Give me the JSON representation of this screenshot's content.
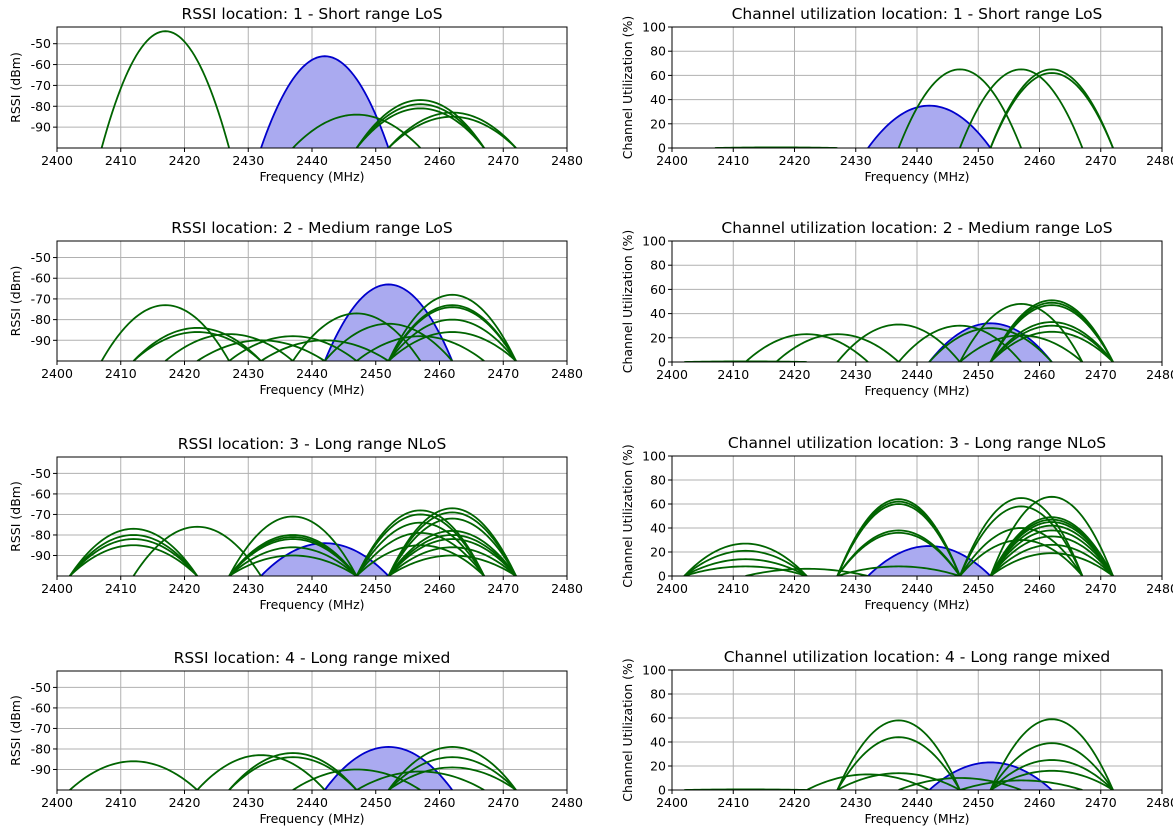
{
  "colors": {
    "neighbor": "#006400",
    "own": "#0000cc",
    "own_fill": "#aaaaf0"
  },
  "chart_data": [
    {
      "type": "area",
      "title": "RSSI location: 1 - Short range LoS",
      "xlabel": "Frequency (MHz)",
      "ylabel": "RSSI (dBm)",
      "xlim": [
        2400,
        2480
      ],
      "ylim": [
        -100,
        -42
      ],
      "xticks": [
        "2400",
        "2410",
        "2420",
        "2430",
        "2440",
        "2450",
        "2460",
        "2470",
        "2480"
      ],
      "yticks": [
        "-50",
        "-60",
        "-70",
        "-80",
        "-90"
      ],
      "ytick_values": [
        -50,
        -60,
        -70,
        -80,
        -90
      ],
      "grid": true,
      "baseline": -100,
      "own_signal": {
        "center": 2442,
        "peak": -56
      },
      "arcs": [
        {
          "center": 2417,
          "peak": -44
        },
        {
          "center": 2447,
          "peak": -84
        },
        {
          "center": 2457,
          "peak": -77
        },
        {
          "center": 2457,
          "peak": -79
        },
        {
          "center": 2457,
          "peak": -81
        },
        {
          "center": 2462,
          "peak": -83
        },
        {
          "center": 2462,
          "peak": -85
        }
      ]
    },
    {
      "type": "area",
      "title": "Channel utilization location: 1 - Short range LoS",
      "xlabel": "Frequency (MHz)",
      "ylabel": "Channel Utilization (%)",
      "xlim": [
        2400,
        2480
      ],
      "ylim": [
        0,
        100
      ],
      "xticks": [
        "2400",
        "2410",
        "2420",
        "2430",
        "2440",
        "2450",
        "2460",
        "2470",
        "2480"
      ],
      "yticks": [
        "0",
        "20",
        "40",
        "60",
        "80",
        "100"
      ],
      "ytick_values": [
        0,
        20,
        40,
        60,
        80,
        100
      ],
      "grid": true,
      "baseline": 0,
      "own_signal": {
        "center": 2442,
        "peak": 35
      },
      "arcs": [
        {
          "center": 2417,
          "peak": 0.5
        },
        {
          "center": 2447,
          "peak": 65
        },
        {
          "center": 2457,
          "peak": 65
        },
        {
          "center": 2462,
          "peak": 65
        },
        {
          "center": 2462,
          "peak": 62
        }
      ]
    },
    {
      "type": "area",
      "title": "RSSI location: 2 - Medium range LoS",
      "xlabel": "Frequency (MHz)",
      "ylabel": "RSSI (dBm)",
      "xlim": [
        2400,
        2480
      ],
      "ylim": [
        -100,
        -42
      ],
      "xticks": [
        "2400",
        "2410",
        "2420",
        "2430",
        "2440",
        "2450",
        "2460",
        "2470",
        "2480"
      ],
      "yticks": [
        "-50",
        "-60",
        "-70",
        "-80",
        "-90"
      ],
      "ytick_values": [
        -50,
        -60,
        -70,
        -80,
        -90
      ],
      "grid": true,
      "baseline": -100,
      "own_signal": {
        "center": 2452,
        "peak": -63
      },
      "arcs": [
        {
          "center": 2417,
          "peak": -73
        },
        {
          "center": 2422,
          "peak": -84
        },
        {
          "center": 2422,
          "peak": -86
        },
        {
          "center": 2427,
          "peak": -87
        },
        {
          "center": 2432,
          "peak": -90
        },
        {
          "center": 2437,
          "peak": -88
        },
        {
          "center": 2442,
          "peak": -90
        },
        {
          "center": 2447,
          "peak": -77
        },
        {
          "center": 2452,
          "peak": -82
        },
        {
          "center": 2457,
          "peak": -88
        },
        {
          "center": 2462,
          "peak": -68
        },
        {
          "center": 2462,
          "peak": -73
        },
        {
          "center": 2462,
          "peak": -74
        },
        {
          "center": 2462,
          "peak": -80
        },
        {
          "center": 2462,
          "peak": -86
        }
      ]
    },
    {
      "type": "area",
      "title": "Channel utilization location: 2 - Medium range LoS",
      "xlabel": "Frequency (MHz)",
      "ylabel": "Channel Utilization (%)",
      "xlim": [
        2400,
        2480
      ],
      "ylim": [
        0,
        100
      ],
      "xticks": [
        "2400",
        "2410",
        "2420",
        "2430",
        "2440",
        "2450",
        "2460",
        "2470",
        "2480"
      ],
      "yticks": [
        "0",
        "20",
        "40",
        "60",
        "80",
        "100"
      ],
      "ytick_values": [
        0,
        20,
        40,
        60,
        80,
        100
      ],
      "grid": true,
      "baseline": 0,
      "own_signal": {
        "center": 2452,
        "peak": 32
      },
      "arcs": [
        {
          "center": 2412,
          "peak": 0.5
        },
        {
          "center": 2422,
          "peak": 23
        },
        {
          "center": 2427,
          "peak": 23
        },
        {
          "center": 2437,
          "peak": 31
        },
        {
          "center": 2447,
          "peak": 30
        },
        {
          "center": 2452,
          "peak": 28
        },
        {
          "center": 2457,
          "peak": 48
        },
        {
          "center": 2462,
          "peak": 51
        },
        {
          "center": 2462,
          "peak": 49
        },
        {
          "center": 2462,
          "peak": 47
        },
        {
          "center": 2462,
          "peak": 33
        },
        {
          "center": 2462,
          "peak": 30
        },
        {
          "center": 2462,
          "peak": 25
        },
        {
          "center": 2457,
          "peak": 22
        }
      ]
    },
    {
      "type": "area",
      "title": "RSSI location: 3 - Long range NLoS",
      "xlabel": "Frequency (MHz)",
      "ylabel": "RSSI (dBm)",
      "xlim": [
        2400,
        2480
      ],
      "ylim": [
        -100,
        -42
      ],
      "xticks": [
        "2400",
        "2410",
        "2420",
        "2430",
        "2440",
        "2450",
        "2460",
        "2470",
        "2480"
      ],
      "yticks": [
        "-50",
        "-60",
        "-70",
        "-80",
        "-90"
      ],
      "ytick_values": [
        -50,
        -60,
        -70,
        -80,
        -90
      ],
      "grid": true,
      "baseline": -100,
      "own_signal": {
        "center": 2442,
        "peak": -84
      },
      "arcs": [
        {
          "center": 2412,
          "peak": -77
        },
        {
          "center": 2412,
          "peak": -80
        },
        {
          "center": 2412,
          "peak": -82
        },
        {
          "center": 2412,
          "peak": -85
        },
        {
          "center": 2422,
          "peak": -76
        },
        {
          "center": 2437,
          "peak": -71
        },
        {
          "center": 2437,
          "peak": -80
        },
        {
          "center": 2437,
          "peak": -81
        },
        {
          "center": 2437,
          "peak": -82
        },
        {
          "center": 2437,
          "peak": -86
        },
        {
          "center": 2437,
          "peak": -90
        },
        {
          "center": 2457,
          "peak": -68
        },
        {
          "center": 2457,
          "peak": -70
        },
        {
          "center": 2457,
          "peak": -74
        },
        {
          "center": 2457,
          "peak": -79
        },
        {
          "center": 2457,
          "peak": -85
        },
        {
          "center": 2462,
          "peak": -67
        },
        {
          "center": 2462,
          "peak": -69
        },
        {
          "center": 2462,
          "peak": -72
        },
        {
          "center": 2462,
          "peak": -78
        },
        {
          "center": 2462,
          "peak": -80
        },
        {
          "center": 2462,
          "peak": -82
        },
        {
          "center": 2462,
          "peak": -86
        },
        {
          "center": 2462,
          "peak": -90
        }
      ]
    },
    {
      "type": "area",
      "title": "Channel utilization location: 3 - Long range NLoS",
      "xlabel": "Frequency (MHz)",
      "ylabel": "Channel Utilization (%)",
      "xlim": [
        2400,
        2480
      ],
      "ylim": [
        0,
        100
      ],
      "xticks": [
        "2400",
        "2410",
        "2420",
        "2430",
        "2440",
        "2450",
        "2460",
        "2470",
        "2480"
      ],
      "yticks": [
        "0",
        "20",
        "40",
        "60",
        "80",
        "100"
      ],
      "ytick_values": [
        0,
        20,
        40,
        60,
        80,
        100
      ],
      "grid": true,
      "baseline": 0,
      "own_signal": {
        "center": 2442,
        "peak": 25
      },
      "arcs": [
        {
          "center": 2412,
          "peak": 27
        },
        {
          "center": 2412,
          "peak": 21
        },
        {
          "center": 2412,
          "peak": 14
        },
        {
          "center": 2412,
          "peak": 8
        },
        {
          "center": 2422,
          "peak": 6
        },
        {
          "center": 2437,
          "peak": 64
        },
        {
          "center": 2437,
          "peak": 62
        },
        {
          "center": 2437,
          "peak": 60
        },
        {
          "center": 2437,
          "peak": 38
        },
        {
          "center": 2437,
          "peak": 36
        },
        {
          "center": 2437,
          "peak": 8
        },
        {
          "center": 2457,
          "peak": 65
        },
        {
          "center": 2457,
          "peak": 58
        },
        {
          "center": 2457,
          "peak": 40
        },
        {
          "center": 2457,
          "peak": 30
        },
        {
          "center": 2462,
          "peak": 66
        },
        {
          "center": 2462,
          "peak": 49
        },
        {
          "center": 2462,
          "peak": 47
        },
        {
          "center": 2462,
          "peak": 45
        },
        {
          "center": 2462,
          "peak": 42
        },
        {
          "center": 2462,
          "peak": 38
        },
        {
          "center": 2462,
          "peak": 33
        },
        {
          "center": 2462,
          "peak": 26
        },
        {
          "center": 2462,
          "peak": 19
        }
      ]
    },
    {
      "type": "area",
      "title": "RSSI location: 4 - Long range mixed",
      "xlabel": "Frequency (MHz)",
      "ylabel": "RSSI (dBm)",
      "xlim": [
        2400,
        2480
      ],
      "ylim": [
        -100,
        -42
      ],
      "xticks": [
        "2400",
        "2410",
        "2420",
        "2430",
        "2440",
        "2450",
        "2460",
        "2470",
        "2480"
      ],
      "yticks": [
        "-50",
        "-60",
        "-70",
        "-80",
        "-90"
      ],
      "ytick_values": [
        -50,
        -60,
        -70,
        -80,
        -90
      ],
      "grid": true,
      "baseline": -100,
      "own_signal": {
        "center": 2452,
        "peak": -79
      },
      "arcs": [
        {
          "center": 2412,
          "peak": -86
        },
        {
          "center": 2432,
          "peak": -83
        },
        {
          "center": 2437,
          "peak": -82
        },
        {
          "center": 2437,
          "peak": -84
        },
        {
          "center": 2447,
          "peak": -90
        },
        {
          "center": 2457,
          "peak": -91
        },
        {
          "center": 2462,
          "peak": -79
        },
        {
          "center": 2462,
          "peak": -84
        },
        {
          "center": 2462,
          "peak": -89
        }
      ]
    },
    {
      "type": "area",
      "title": "Channel utilization location: 4 - Long range mixed",
      "xlabel": "Frequency (MHz)",
      "ylabel": "Channel Utilization (%)",
      "xlim": [
        2400,
        2480
      ],
      "ylim": [
        0,
        100
      ],
      "xticks": [
        "2400",
        "2410",
        "2420",
        "2430",
        "2440",
        "2450",
        "2460",
        "2470",
        "2480"
      ],
      "yticks": [
        "0",
        "20",
        "40",
        "60",
        "80",
        "100"
      ],
      "ytick_values": [
        0,
        20,
        40,
        60,
        80,
        100
      ],
      "grid": true,
      "baseline": 0,
      "own_signal": {
        "center": 2452,
        "peak": 23
      },
      "arcs": [
        {
          "center": 2412,
          "peak": 0.5
        },
        {
          "center": 2432,
          "peak": 13
        },
        {
          "center": 2437,
          "peak": 58
        },
        {
          "center": 2437,
          "peak": 44
        },
        {
          "center": 2437,
          "peak": 14
        },
        {
          "center": 2447,
          "peak": 10
        },
        {
          "center": 2457,
          "peak": 8
        },
        {
          "center": 2462,
          "peak": 59
        },
        {
          "center": 2462,
          "peak": 39
        },
        {
          "center": 2462,
          "peak": 25
        },
        {
          "center": 2462,
          "peak": 16
        }
      ]
    }
  ]
}
